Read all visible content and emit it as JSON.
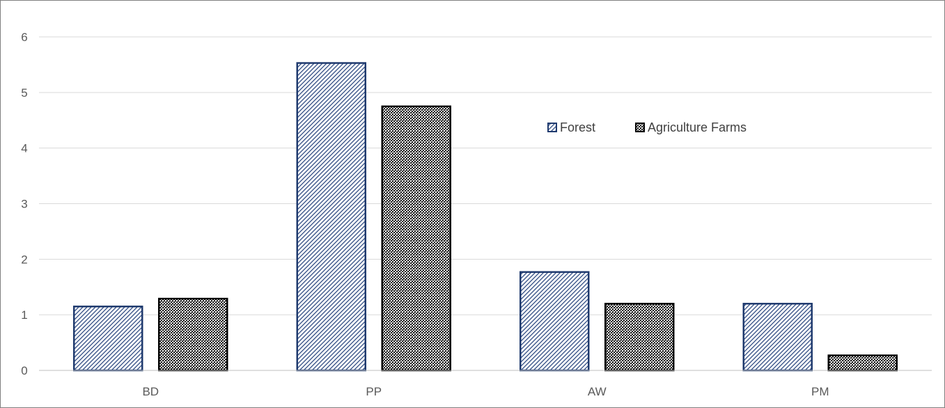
{
  "chart_data": {
    "type": "bar",
    "categories": [
      "BD",
      "PP",
      "AW",
      "PM"
    ],
    "series": [
      {
        "name": "Forest",
        "values": [
          1.15,
          5.53,
          1.77,
          1.2
        ]
      },
      {
        "name": "Agriculture Farms",
        "values": [
          1.29,
          4.75,
          1.2,
          0.27
        ]
      }
    ],
    "ylim": [
      0,
      6
    ],
    "yticks": [
      "0",
      "1",
      "2",
      "3",
      "4",
      "5",
      "6"
    ],
    "grid": true,
    "legend_placement": "top-right",
    "colors": {
      "forest_stroke": "#1f3a6e",
      "forest_hatch": "#2e4a82",
      "farms_stroke": "#000000",
      "farms_hatch": "#1a1a1a",
      "grid": "#d9d9d9",
      "axis": "#bfbfbf"
    }
  }
}
